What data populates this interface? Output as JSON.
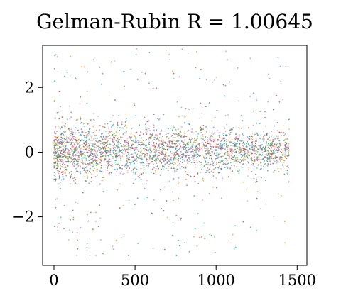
{
  "chart_data": {
    "type": "scatter",
    "title": "Gelman-Rubin R = 1.00645",
    "xlabel": "",
    "ylabel": "",
    "xlim": [
      -70,
      1560
    ],
    "ylim": [
      -3.5,
      3.3
    ],
    "xticks": [
      0,
      500,
      1000,
      1500
    ],
    "yticks": [
      2,
      0,
      -2
    ],
    "xtick_labels": [
      "0",
      "500",
      "1000",
      "1500"
    ],
    "ytick_labels": [
      "2",
      "0",
      "−2"
    ],
    "grid": false,
    "legend": "none",
    "description_note": "Many chains overplotted; each point is a sample value vs iteration",
    "series_colors": [
      "#1f77b4",
      "#ff7f0e",
      "#2ca02c",
      "#d62728",
      "#9467bd",
      "#8c564b",
      "#e377c2",
      "#7f7f7f",
      "#bcbd22",
      "#17becf",
      "#2aa198",
      "#e07bb5"
    ],
    "points_per_series": 260,
    "x_max_iteration": 1450,
    "core_range": [
      -1.0,
      1.0
    ],
    "outlier_range": [
      -3.2,
      3.2
    ]
  }
}
